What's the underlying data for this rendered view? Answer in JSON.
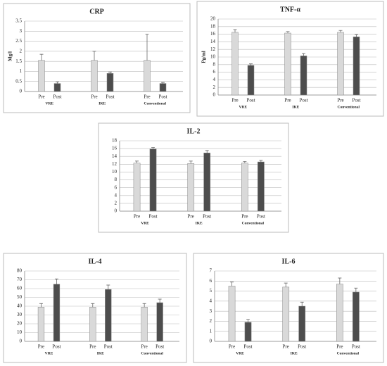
{
  "chart_data": [
    {
      "type": "bar",
      "title": "CRP",
      "y_label": "Mg/l",
      "categories": [
        "VRE",
        "IKE",
        "Conventional"
      ],
      "series": [
        {
          "name": "Pre",
          "color": "#d9d9d9",
          "values": [
            1.55,
            1.55,
            1.55
          ],
          "errors": [
            0.3,
            0.45,
            1.3
          ]
        },
        {
          "name": "Post",
          "color": "#4d4d4d",
          "values": [
            0.4,
            0.9,
            0.4
          ],
          "errors": [
            0.08,
            0.07,
            0.05
          ]
        }
      ],
      "ylim": [
        0,
        3.5
      ],
      "yticks": [
        0,
        0.5,
        1,
        1.5,
        2,
        2.5,
        3,
        3.5
      ],
      "grid": true
    },
    {
      "type": "bar",
      "title": "TNF-α",
      "y_label": "Pg/ml",
      "categories": [
        "VRE",
        "IKE",
        "Conventional"
      ],
      "series": [
        {
          "name": "Pre",
          "color": "#d9d9d9",
          "values": [
            16.5,
            16.3,
            16.5
          ],
          "errors": [
            0.7,
            0.4,
            0.5
          ]
        },
        {
          "name": "Post",
          "color": "#4d4d4d",
          "values": [
            7.8,
            10.3,
            15.3
          ],
          "errors": [
            0.4,
            0.6,
            0.6
          ]
        }
      ],
      "ylim": [
        0,
        20
      ],
      "yticks": [
        0,
        2,
        4,
        6,
        8,
        10,
        12,
        14,
        16,
        18,
        20
      ],
      "grid": true
    },
    {
      "type": "bar",
      "title": "IL-2",
      "categories": [
        "VRE",
        "IKE",
        "Conventional"
      ],
      "series": [
        {
          "name": "Pre",
          "color": "#d9d9d9",
          "values": [
            12.3,
            12.2,
            12.3
          ],
          "errors": [
            0.5,
            0.6,
            0.4
          ]
        },
        {
          "name": "Post",
          "color": "#4d4d4d",
          "values": [
            15.9,
            14.9,
            12.6
          ],
          "errors": [
            0.4,
            0.6,
            0.4
          ]
        }
      ],
      "ylim": [
        0,
        18
      ],
      "yticks": [
        0,
        2,
        4,
        6,
        8,
        10,
        12,
        14,
        16,
        18
      ],
      "grid": true
    },
    {
      "type": "bar",
      "title": "IL-4",
      "categories": [
        "VRE",
        "IKE",
        "Conventional"
      ],
      "series": [
        {
          "name": "Pre",
          "color": "#d9d9d9",
          "values": [
            39,
            39,
            39
          ],
          "errors": [
            4,
            4,
            4
          ]
        },
        {
          "name": "Post",
          "color": "#4d4d4d",
          "values": [
            65,
            59,
            44
          ],
          "errors": [
            6,
            5,
            4
          ]
        }
      ],
      "ylim": [
        0,
        80
      ],
      "yticks": [
        0,
        10,
        20,
        30,
        40,
        50,
        60,
        70,
        80
      ],
      "grid": true
    },
    {
      "type": "bar",
      "title": "IL-6",
      "categories": [
        "VRE",
        "IKE",
        "Conventional"
      ],
      "series": [
        {
          "name": "Pre",
          "color": "#d9d9d9",
          "values": [
            5.5,
            5.4,
            5.7
          ],
          "errors": [
            0.4,
            0.4,
            0.6
          ]
        },
        {
          "name": "Post",
          "color": "#4d4d4d",
          "values": [
            1.9,
            3.5,
            4.9
          ],
          "errors": [
            0.3,
            0.4,
            0.4
          ]
        }
      ],
      "ylim": [
        0,
        7
      ],
      "yticks": [
        0,
        1,
        2,
        3,
        4,
        5,
        6,
        7
      ],
      "grid": true
    }
  ]
}
